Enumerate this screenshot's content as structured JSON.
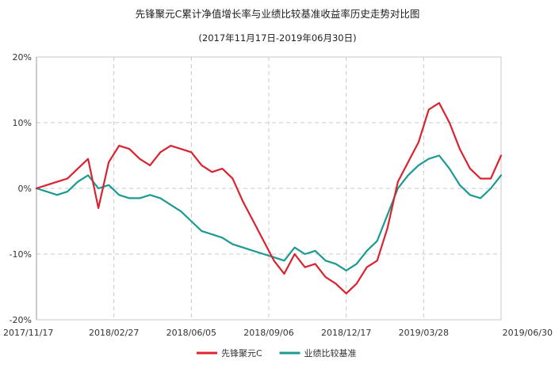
{
  "chart_data": {
    "type": "line",
    "title": "先锋聚元C累计净值增长率与业绩比较基准收益率历史走势对比图",
    "subtitle": "(2017年11月17日-2019年06月30日)",
    "x_tick_labels": [
      "2017/11/17",
      "2018/02/27",
      "2018/06/05",
      "2018/09/06",
      "2018/12/17",
      "2019/03/28",
      "2019/06/30"
    ],
    "y_tick_labels": [
      "20%",
      "10%",
      "0%",
      "-10%",
      "-20%"
    ],
    "ylim": [
      -20,
      20
    ],
    "grid": true,
    "legend_position": "bottom-center",
    "x": [
      0,
      2,
      4,
      6,
      8,
      10,
      12,
      14,
      16,
      18,
      20,
      22,
      24,
      26,
      28,
      30,
      32,
      34,
      36,
      38,
      40,
      42,
      44,
      46,
      48,
      50,
      52,
      54,
      56,
      58,
      60,
      62,
      64,
      66,
      68,
      70,
      72,
      74,
      76,
      78,
      80,
      82,
      84,
      86,
      88,
      90
    ],
    "series": [
      {
        "name": "先锋聚元C",
        "color": "#d9232e",
        "values": [
          0.0,
          0.5,
          1.0,
          1.5,
          3.0,
          4.5,
          -3.0,
          4.0,
          6.5,
          6.0,
          4.5,
          3.5,
          5.5,
          6.5,
          6.0,
          5.5,
          3.5,
          2.5,
          3.0,
          1.5,
          -2.0,
          -5.0,
          -8.0,
          -11.0,
          -13.0,
          -10.0,
          -12.0,
          -11.5,
          -13.5,
          -14.5,
          -16.0,
          -14.5,
          -12.0,
          -11.0,
          -6.0,
          1.0,
          4.0,
          7.0,
          12.0,
          13.0,
          10.0,
          6.0,
          3.0,
          1.5,
          1.5,
          5.0
        ]
      },
      {
        "name": "业绩比较基准",
        "color": "#1b9a92",
        "values": [
          0.0,
          -0.5,
          -1.0,
          -0.5,
          1.0,
          2.0,
          0.0,
          0.5,
          -1.0,
          -1.5,
          -1.5,
          -1.0,
          -1.5,
          -2.5,
          -3.5,
          -5.0,
          -6.5,
          -7.0,
          -7.5,
          -8.5,
          -9.0,
          -9.5,
          -10.0,
          -10.5,
          -11.0,
          -9.0,
          -10.0,
          -9.5,
          -11.0,
          -11.5,
          -12.5,
          -11.5,
          -9.5,
          -8.0,
          -4.0,
          0.0,
          2.0,
          3.5,
          4.5,
          5.0,
          3.0,
          0.5,
          -1.0,
          -1.5,
          0.0,
          2.0
        ]
      }
    ]
  }
}
